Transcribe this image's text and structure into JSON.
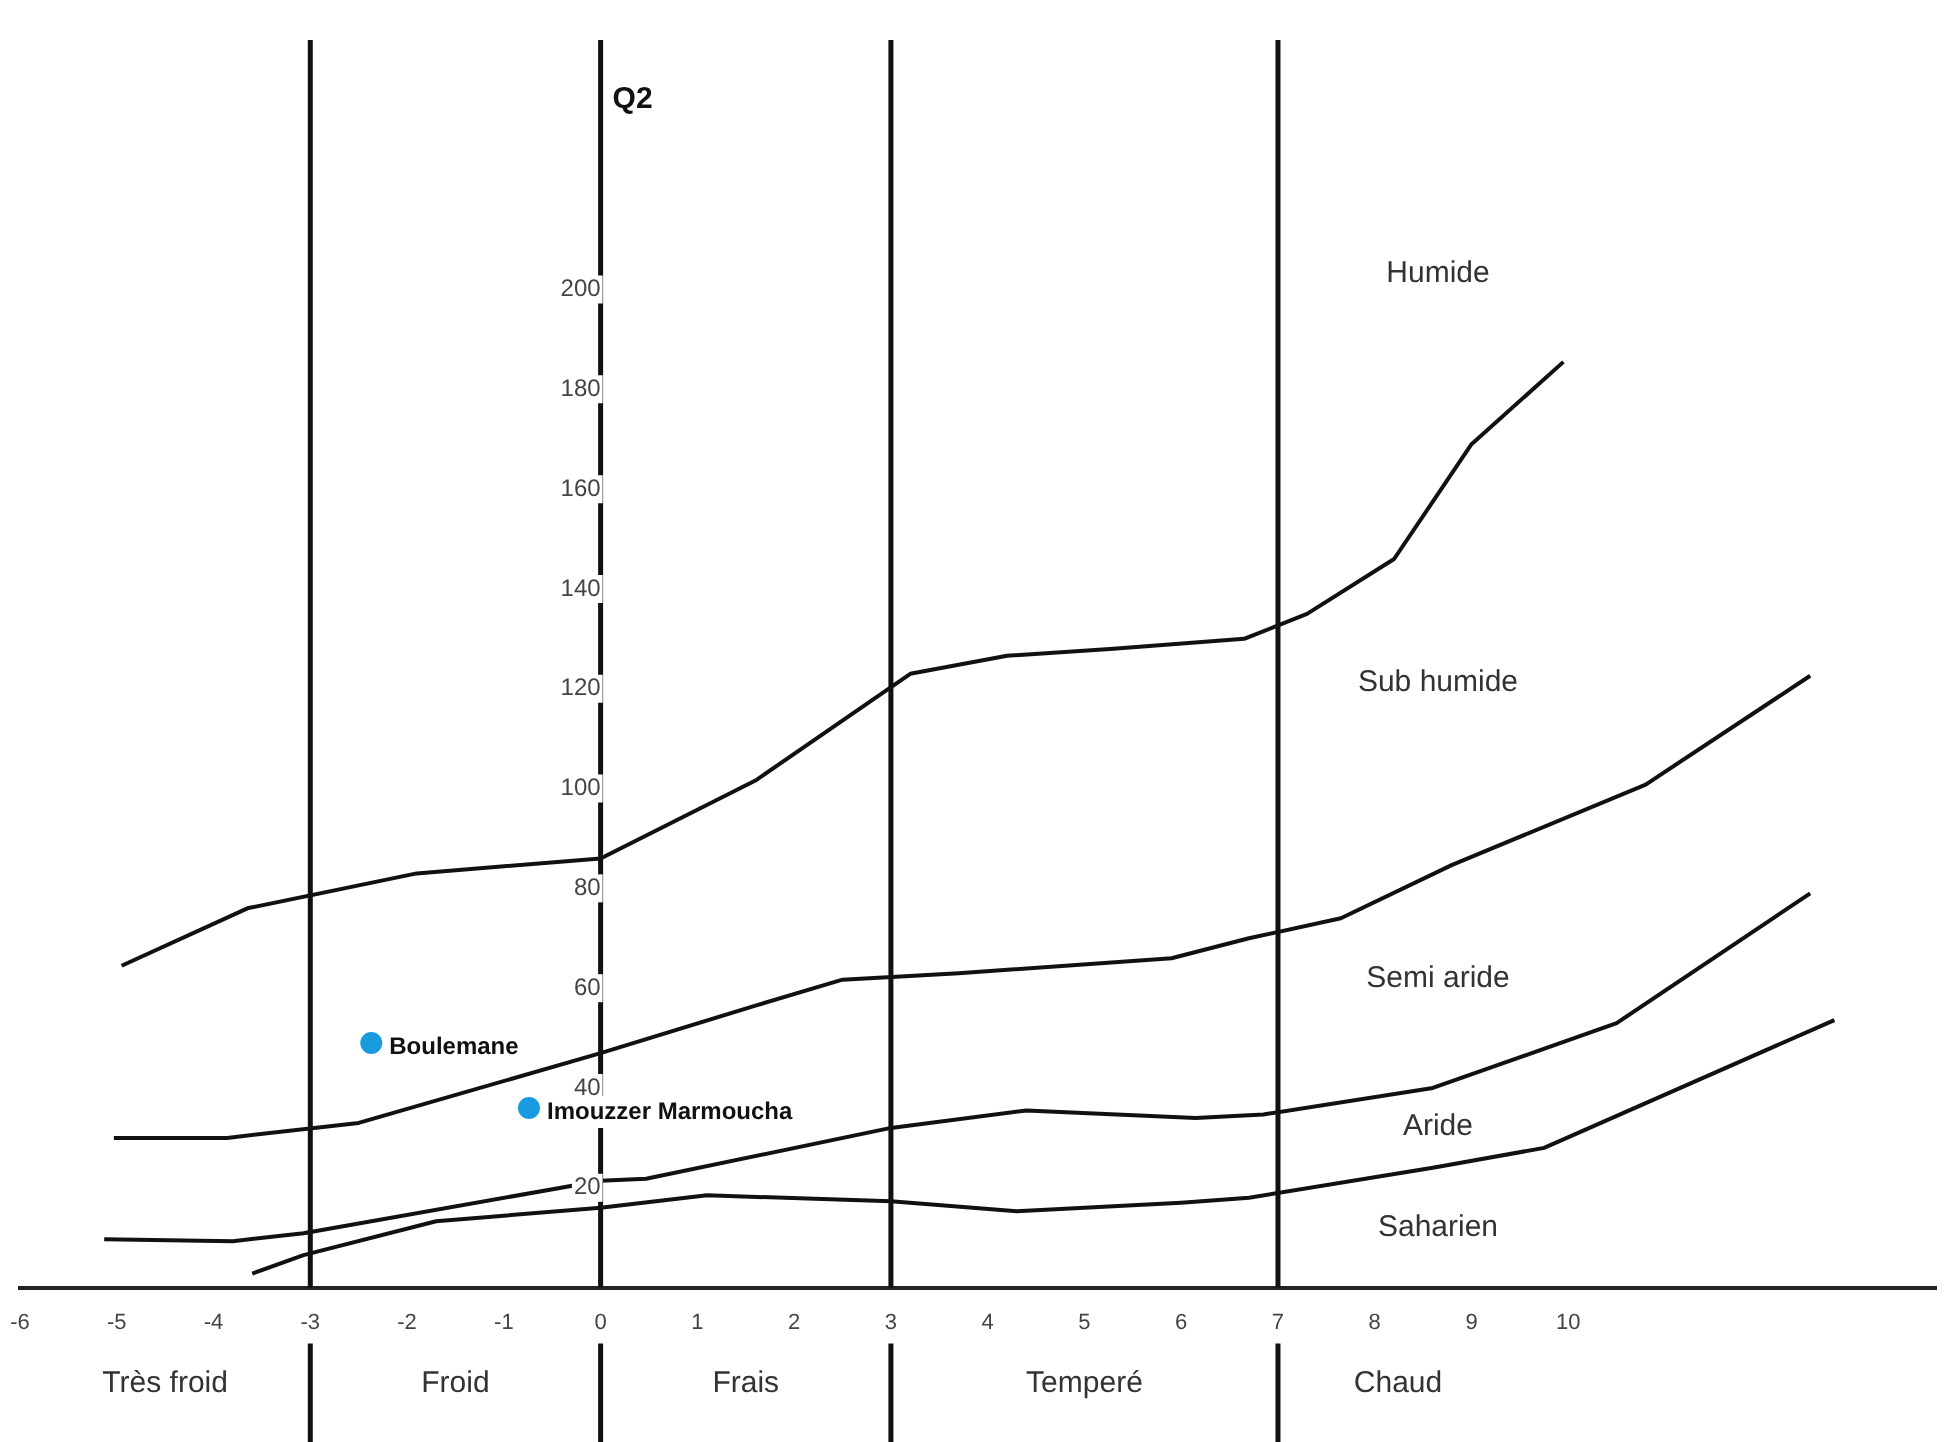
{
  "chart_data": {
    "type": "line",
    "ylabel": "Q2",
    "xlim": [
      -6,
      13.8
    ],
    "ylim": [
      0,
      250
    ],
    "xticks": [
      -6,
      -5,
      -4,
      -3,
      -2,
      -1,
      0,
      1,
      2,
      3,
      4,
      5,
      6,
      7,
      8,
      9,
      10
    ],
    "yticks": [
      20,
      40,
      60,
      80,
      100,
      120,
      140,
      160,
      180,
      200
    ],
    "grid": false,
    "legend": false,
    "marker": "none",
    "line_style": "solid",
    "series": [
      {
        "color": "#111111",
        "x": [
          -4.95,
          -3.65,
          -1.9,
          0,
          1.6,
          3.2,
          4.2,
          5.3,
          6.65,
          7.3,
          8.2,
          9.0,
          9.95
        ],
        "values": [
          64.5,
          76,
          83,
          86,
          101.6,
          123,
          126.6,
          128,
          130,
          135,
          146,
          169,
          185.5
        ]
      },
      {
        "color": "#111111",
        "x": [
          -5.03,
          -3.86,
          -2.5,
          0,
          1.6,
          2.5,
          3.7,
          5.9,
          6.7,
          7.65,
          8.8,
          10.8,
          12.5
        ],
        "values": [
          30,
          30,
          33,
          47,
          56.5,
          61.7,
          63,
          66,
          70,
          74,
          84.7,
          100.8,
          122.6
        ]
      },
      {
        "color": "#111111",
        "x": [
          -5.13,
          -3.8,
          -3.07,
          0,
          0.47,
          3,
          4.4,
          6.15,
          6.85,
          8.6,
          10.5,
          12.5
        ],
        "values": [
          9.7,
          9.3,
          10.9,
          21.4,
          21.8,
          32,
          35.5,
          34,
          34.7,
          40,
          53,
          79
        ]
      },
      {
        "color": "#111111",
        "x": [
          -3.6,
          -3.07,
          -1.7,
          0,
          1.1,
          3,
          4.3,
          6.0,
          6.7,
          8.6,
          9.75,
          12.75
        ],
        "values": [
          2.8,
          6.5,
          13.3,
          16,
          18.5,
          17.3,
          15.3,
          17,
          18,
          24,
          28,
          53.6
        ]
      },
      {
        "type": "scatter",
        "marker": "circle",
        "name": "Boulemane",
        "color": "#1a9be0",
        "x": [
          -2.37
        ],
        "values": [
          49
        ]
      },
      {
        "type": "scatter",
        "marker": "circle",
        "name": "Imouzzer Marmoucha",
        "color": "#1a9be0",
        "x": [
          -0.74
        ],
        "values": [
          36
        ]
      }
    ],
    "ref_lines": [
      {
        "axis": "x",
        "value": -3,
        "color": "#111111"
      },
      {
        "axis": "x",
        "value": 0,
        "color": "#111111"
      },
      {
        "axis": "x",
        "value": 3,
        "color": "#111111"
      },
      {
        "axis": "x",
        "value": 7,
        "color": "#111111"
      }
    ],
    "annotations": [
      "Humide",
      "Sub humide",
      "Semi aride",
      "Aride",
      "Saharien",
      "Très froid",
      "Froid",
      "Frais",
      "Temperé",
      "Chaud"
    ]
  }
}
